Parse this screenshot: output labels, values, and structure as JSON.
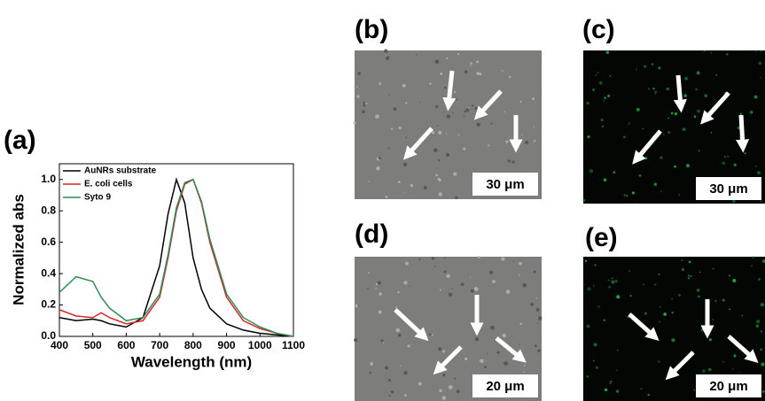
{
  "chart_data": {
    "type": "line",
    "title": "(a)",
    "x_label": "Wavelength (nm)",
    "y_label": "Normalized abs",
    "x": [
      400,
      450,
      500,
      525,
      550,
      600,
      650,
      700,
      725,
      750,
      775,
      800,
      825,
      850,
      900,
      950,
      1000,
      1050,
      1100
    ],
    "series": [
      {
        "name": "AuNRs substrate",
        "color": "#000000",
        "values": [
          0.12,
          0.1,
          0.11,
          0.1,
          0.08,
          0.06,
          0.12,
          0.45,
          0.78,
          1.0,
          0.85,
          0.5,
          0.3,
          0.18,
          0.08,
          0.04,
          0.02,
          0.01,
          0.0
        ]
      },
      {
        "name": "E. coli cells",
        "color": "#d62728",
        "values": [
          0.17,
          0.13,
          0.12,
          0.15,
          0.12,
          0.08,
          0.1,
          0.25,
          0.5,
          0.8,
          0.97,
          1.0,
          0.85,
          0.6,
          0.25,
          0.1,
          0.05,
          0.02,
          0.0
        ]
      },
      {
        "name": "Syto 9",
        "color": "#2e8b57",
        "values": [
          0.28,
          0.38,
          0.35,
          0.25,
          0.18,
          0.1,
          0.12,
          0.27,
          0.52,
          0.82,
          0.98,
          1.0,
          0.86,
          0.62,
          0.27,
          0.12,
          0.06,
          0.02,
          0.0
        ]
      }
    ],
    "xlim": [
      400,
      1100
    ],
    "xticks": [
      400,
      500,
      600,
      700,
      800,
      900,
      1000,
      1100
    ],
    "ylim": [
      0,
      1.1
    ],
    "yticks": [
      {
        "value": 0,
        "label": "0.0"
      },
      0.2,
      0.4,
      0.6,
      0.8,
      {
        "value": 1,
        "label": "1.0"
      }
    ],
    "legend": "top-left"
  },
  "panels": [
    {
      "label": "(b)",
      "scale_bar": "30 μm",
      "style": "bright"
    },
    {
      "label": "(c)",
      "scale_bar": "30 μm",
      "style": "fluor"
    },
    {
      "label": "(d)",
      "scale_bar": "20 μm",
      "style": "bright"
    },
    {
      "label": "(e)",
      "scale_bar": "20 μm",
      "style": "fluor"
    }
  ]
}
